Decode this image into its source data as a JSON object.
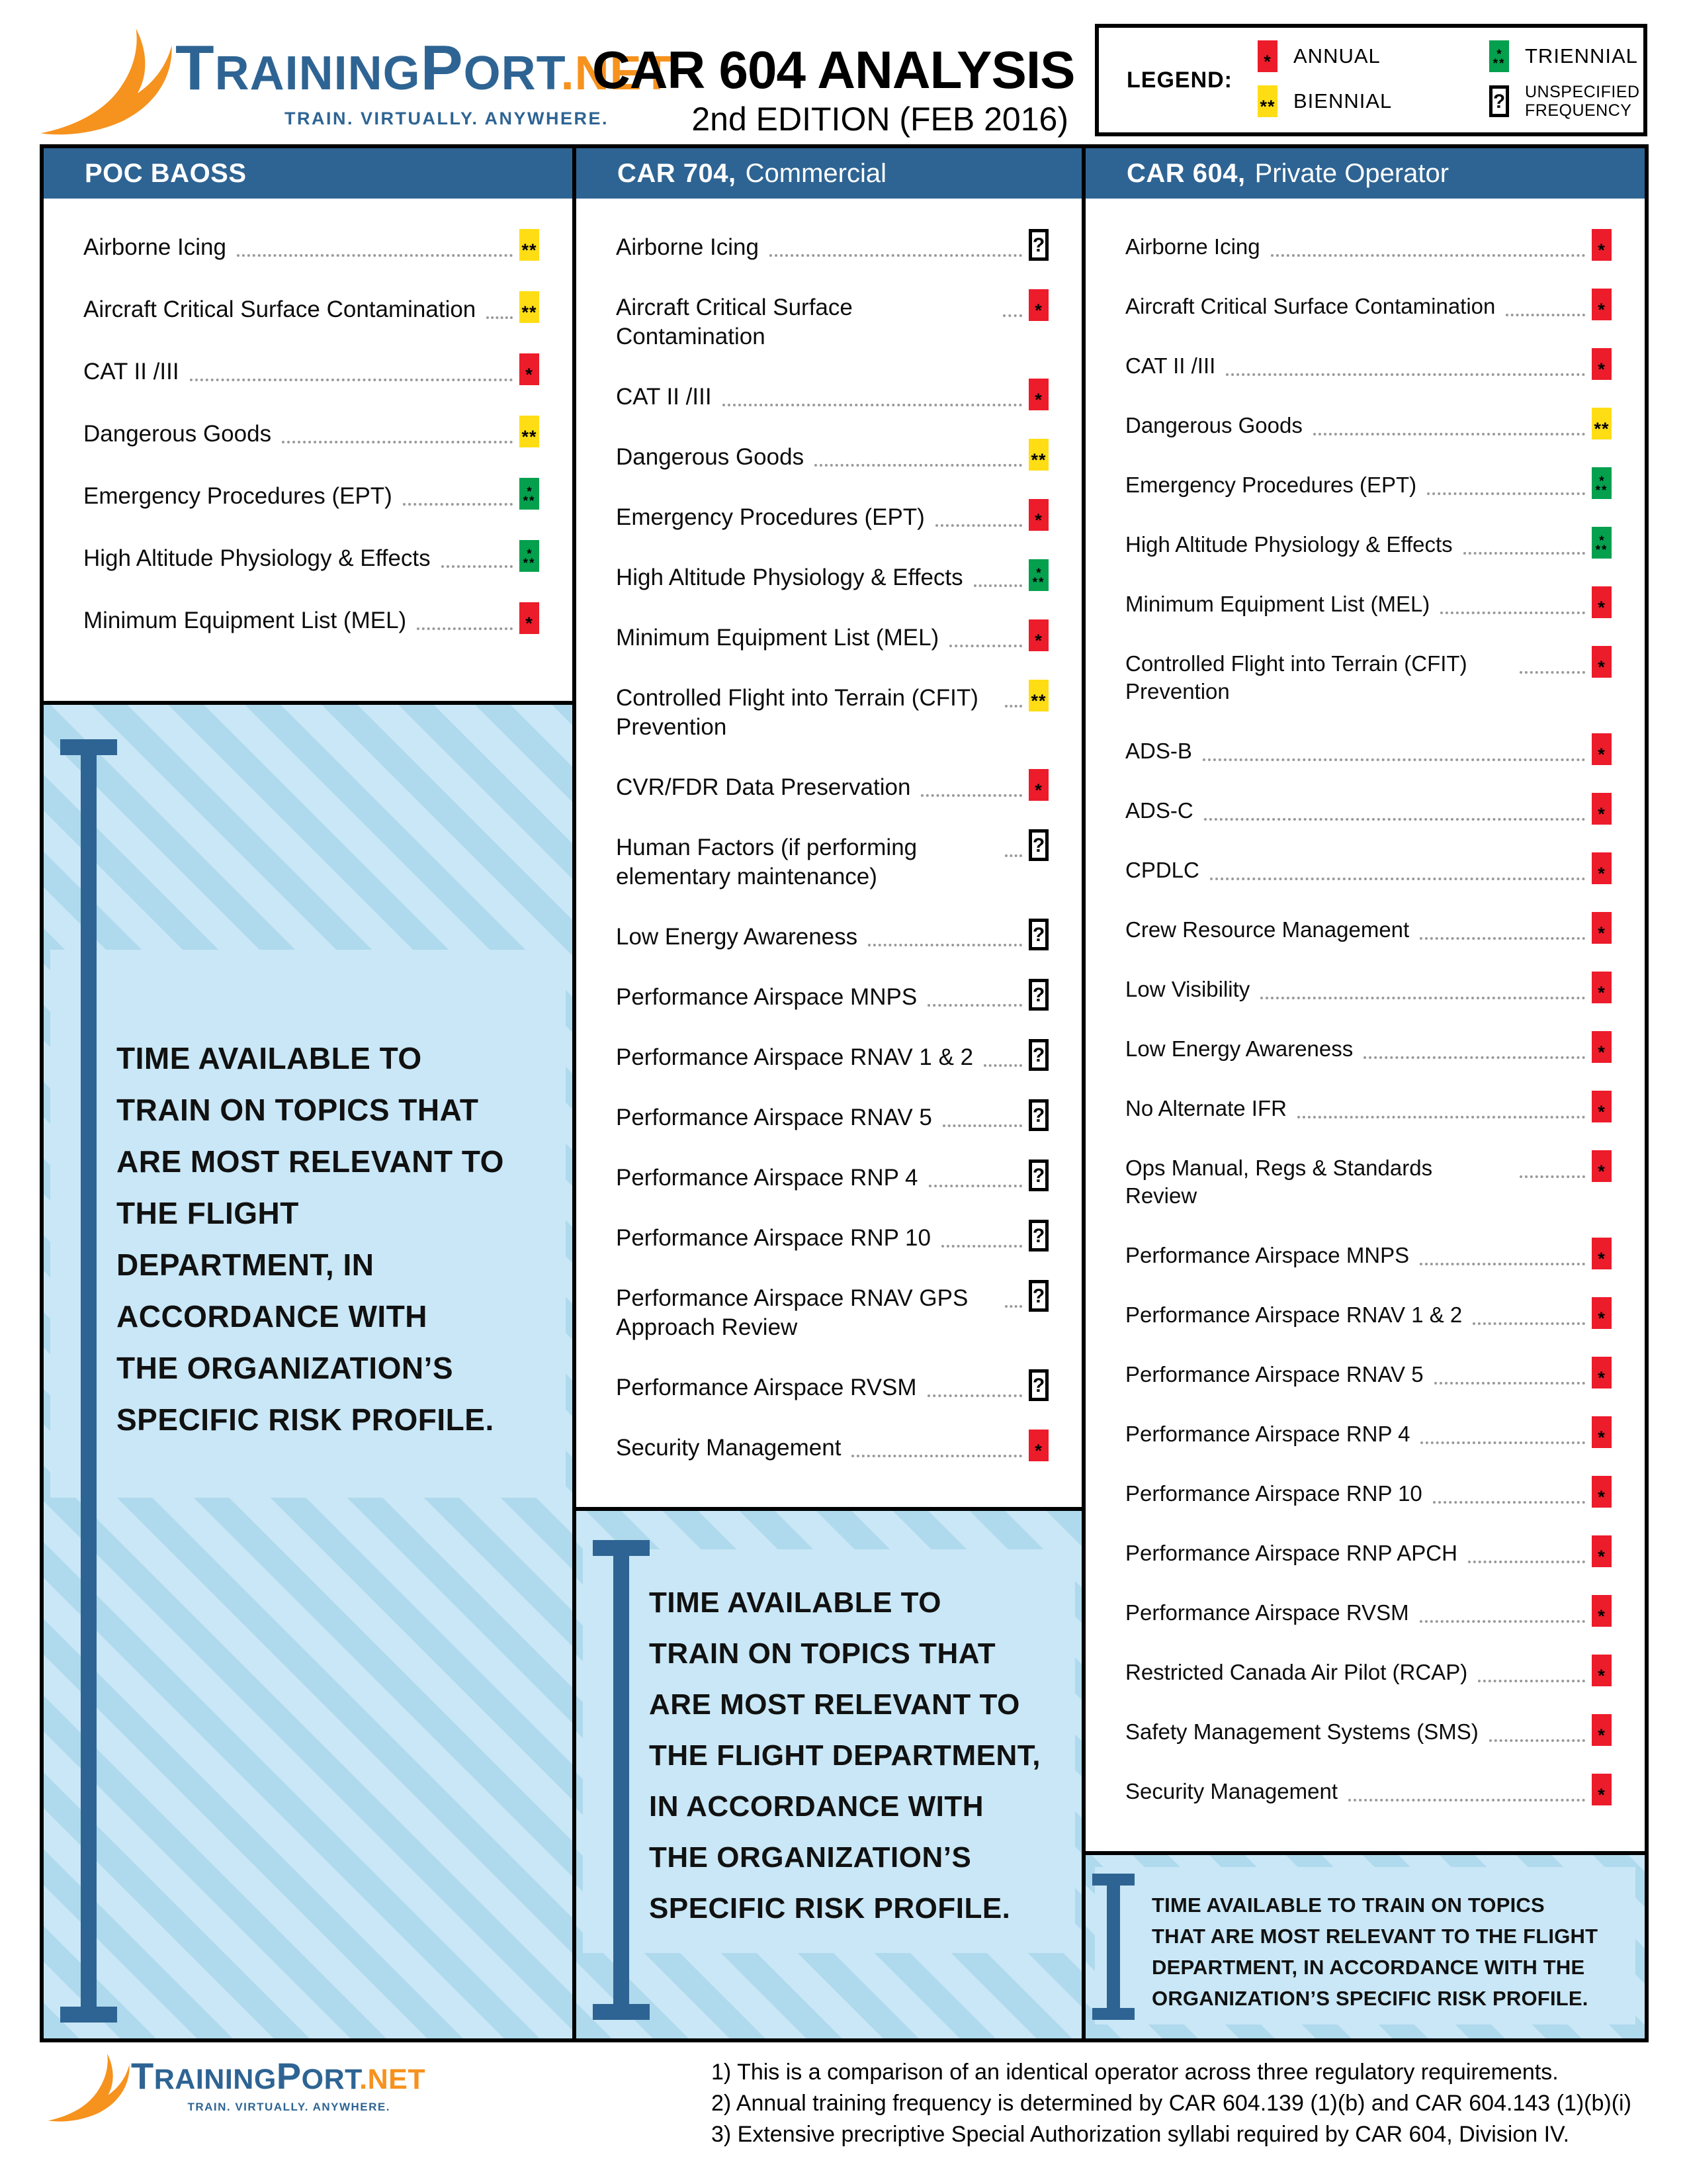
{
  "brand": {
    "wordmark_parts": [
      "T",
      "RAINING",
      "P",
      "ORT",
      ".NET"
    ],
    "tagline": "TRAIN. VIRTUALLY. ANYWHERE."
  },
  "title": {
    "main": "CAR 604 ANALYSIS",
    "subtitle": "2nd EDITION (FEB 2016)"
  },
  "legend": {
    "label": "LEGEND:",
    "items": [
      {
        "key": "annual",
        "label": "ANNUAL"
      },
      {
        "key": "triennial",
        "label": "TRIENNIAL"
      },
      {
        "key": "biennial",
        "label": "BIENNIAL"
      },
      {
        "key": "unspecified",
        "label": "UNSPECIFIED FREQUENCY"
      }
    ]
  },
  "badge_glyphs": {
    "annual": "*",
    "biennial": "**",
    "triennial_top": "*",
    "triennial_bottom": "**",
    "unspecified": "?"
  },
  "colors": {
    "annual": "#EC1C2B",
    "biennial": "#FFDD15",
    "triennial": "#04A04E",
    "header_blue": "#2E6493",
    "light_blue": "#C9E7F6",
    "stripe_blue": "#AFD9EC",
    "orange": "#F6921E"
  },
  "columns": [
    {
      "title_bold": "POC BAOSS",
      "title_rest": "",
      "items": [
        {
          "label": "Airborne Icing",
          "freq": "biennial"
        },
        {
          "label": "Aircraft Critical Surface Contamination",
          "freq": "biennial"
        },
        {
          "label": "CAT II /III",
          "freq": "annual"
        },
        {
          "label": "Dangerous Goods",
          "freq": "biennial"
        },
        {
          "label": "Emergency Procedures (EPT)",
          "freq": "triennial"
        },
        {
          "label": "High Altitude Physiology & Effects",
          "freq": "triennial"
        },
        {
          "label": "Minimum Equipment List (MEL)",
          "freq": "annual"
        }
      ],
      "note": "TIME AVAILABLE TO\nTRAIN ON TOPICS THAT\nARE MOST RELEVANT TO\nTHE FLIGHT\nDEPARTMENT, IN\nACCORDANCE WITH\nTHE ORGANIZATION’S\nSPECIFIC RISK PROFILE."
    },
    {
      "title_bold": "CAR 704,",
      "title_rest": "Commercial",
      "items": [
        {
          "label": "Airborne Icing",
          "freq": "unspecified"
        },
        {
          "label": "Aircraft Critical Surface Contamination",
          "freq": "annual"
        },
        {
          "label": "CAT II /III",
          "freq": "annual"
        },
        {
          "label": "Dangerous Goods",
          "freq": "biennial"
        },
        {
          "label": "Emergency Procedures (EPT)",
          "freq": "annual"
        },
        {
          "label": "High Altitude Physiology & Effects",
          "freq": "triennial"
        },
        {
          "label": "Minimum Equipment List (MEL)",
          "freq": "annual"
        },
        {
          "label": "Controlled Flight into Terrain (CFIT) Prevention",
          "freq": "biennial"
        },
        {
          "label": "CVR/FDR Data Preservation",
          "freq": "annual"
        },
        {
          "label": "Human Factors (if performing elementary maintenance)",
          "freq": "unspecified"
        },
        {
          "label": "Low Energy Awareness",
          "freq": "unspecified"
        },
        {
          "label": "Performance Airspace MNPS",
          "freq": "unspecified"
        },
        {
          "label": "Performance Airspace RNAV 1 & 2",
          "freq": "unspecified"
        },
        {
          "label": "Performance Airspace RNAV 5",
          "freq": "unspecified"
        },
        {
          "label": "Performance Airspace RNP 4",
          "freq": "unspecified"
        },
        {
          "label": "Performance Airspace RNP 10",
          "freq": "unspecified"
        },
        {
          "label": "Performance Airspace RNAV GPS Approach Review",
          "freq": "unspecified"
        },
        {
          "label": "Performance Airspace RVSM",
          "freq": "unspecified"
        },
        {
          "label": "Security Management",
          "freq": "annual"
        }
      ],
      "note": "TIME AVAILABLE TO\nTRAIN ON TOPICS THAT\nARE MOST RELEVANT TO\nTHE FLIGHT DEPARTMENT,\nIN ACCORDANCE WITH\nTHE ORGANIZATION’S\nSPECIFIC RISK PROFILE."
    },
    {
      "title_bold": "CAR 604,",
      "title_rest": "Private Operator",
      "items": [
        {
          "label": "Airborne Icing",
          "freq": "annual"
        },
        {
          "label": "Aircraft Critical Surface Contamination",
          "freq": "annual"
        },
        {
          "label": "CAT II /III",
          "freq": "annual"
        },
        {
          "label": "Dangerous Goods",
          "freq": "biennial"
        },
        {
          "label": "Emergency Procedures (EPT)",
          "freq": "triennial"
        },
        {
          "label": "High Altitude Physiology & Effects",
          "freq": "triennial"
        },
        {
          "label": "Minimum Equipment List (MEL)",
          "freq": "annual"
        },
        {
          "label": "Controlled Flight into Terrain (CFIT) Prevention",
          "freq": "annual"
        },
        {
          "label": "ADS-B",
          "freq": "annual"
        },
        {
          "label": "ADS-C",
          "freq": "annual"
        },
        {
          "label": "CPDLC",
          "freq": "annual"
        },
        {
          "label": "Crew Resource Management",
          "freq": "annual"
        },
        {
          "label": "Low Visibility",
          "freq": "annual"
        },
        {
          "label": "Low Energy Awareness",
          "freq": "annual"
        },
        {
          "label": "No Alternate IFR",
          "freq": "annual"
        },
        {
          "label": "Ops Manual, Regs & Standards Review",
          "freq": "annual"
        },
        {
          "label": "Performance Airspace MNPS",
          "freq": "annual"
        },
        {
          "label": "Performance Airspace RNAV 1 & 2",
          "freq": "annual"
        },
        {
          "label": "Performance Airspace RNAV 5",
          "freq": "annual"
        },
        {
          "label": "Performance Airspace RNP 4",
          "freq": "annual"
        },
        {
          "label": "Performance Airspace RNP 10",
          "freq": "annual"
        },
        {
          "label": "Performance Airspace RNP APCH",
          "freq": "annual"
        },
        {
          "label": "Performance Airspace RVSM",
          "freq": "annual"
        },
        {
          "label": "Restricted Canada Air Pilot (RCAP)",
          "freq": "annual"
        },
        {
          "label": "Safety Management Systems (SMS)",
          "freq": "annual"
        },
        {
          "label": "Security Management",
          "freq": "annual"
        }
      ],
      "note": "TIME AVAILABLE TO TRAIN ON TOPICS\nTHAT ARE MOST RELEVANT TO THE FLIGHT\nDEPARTMENT, IN ACCORDANCE WITH THE\nORGANIZATION’S SPECIFIC RISK PROFILE."
    }
  ],
  "footnotes": [
    "1) This is a comparison of an identical operator across three regulatory requirements.",
    "2) Annual training frequency is determined by CAR 604.139 (1)(b) and CAR 604.143 (1)(b)(i)",
    "3) Extensive precriptive Special Authorization syllabi required by CAR 604, Division IV."
  ]
}
